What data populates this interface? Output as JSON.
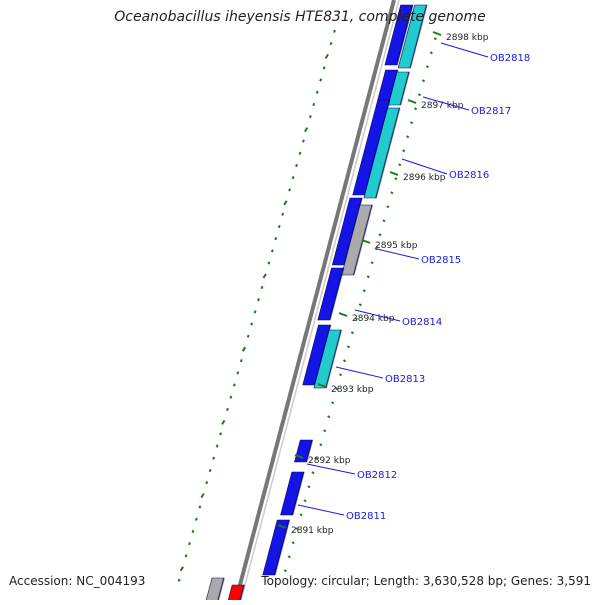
{
  "title": "Oceanobacillus iheyensis HTE831, complete genome",
  "accession": "Accession: NC_004193",
  "summary": "Topology: circular; Length: 3,630,528 bp; Genes: 3,591",
  "colors": {
    "forward_gene": "#1414e6",
    "reverse_gene": "#22cccc",
    "other_feature": "#aaaaaa",
    "highlight": "#ff0000",
    "tick": "#1a7a1a",
    "backbone": "#777777",
    "label_link": "#1a1adb"
  },
  "scale_ticks": [
    {
      "label": "2898 kbp"
    },
    {
      "label": "2897 kbp"
    },
    {
      "label": "2896 kbp"
    },
    {
      "label": "2895 kbp"
    },
    {
      "label": "2894 kbp"
    },
    {
      "label": "2893 kbp"
    },
    {
      "label": "2892 kbp"
    },
    {
      "label": "2891 kbp"
    }
  ],
  "genes": [
    {
      "label": "OB2818"
    },
    {
      "label": "OB2817"
    },
    {
      "label": "OB2816"
    },
    {
      "label": "OB2815"
    },
    {
      "label": "OB2814"
    },
    {
      "label": "OB2813"
    },
    {
      "label": "OB2812"
    },
    {
      "label": "OB2811"
    }
  ]
}
